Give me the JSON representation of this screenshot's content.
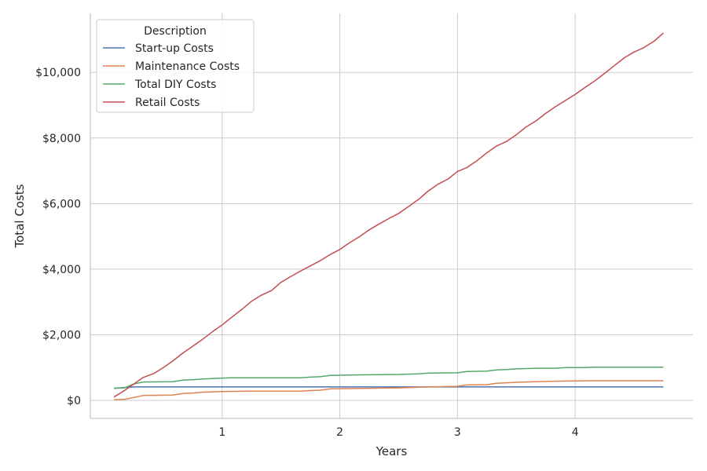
{
  "chart_data": {
    "type": "line",
    "xlabel": "Years",
    "ylabel": "Total Costs",
    "xlim": [
      -0.12,
      5.0
    ],
    "ylim": [
      -550,
      11800
    ],
    "xticks": [
      1,
      2,
      3,
      4
    ],
    "xtick_labels": [
      "1",
      "2",
      "3",
      "4"
    ],
    "yticks": [
      0,
      2000,
      4000,
      6000,
      8000,
      10000
    ],
    "ytick_labels": [
      "$0",
      "$2,000",
      "$4,000",
      "$6,000",
      "$8,000",
      "$10,000"
    ],
    "grid": true,
    "legend": {
      "title": "Description",
      "position": "top-left"
    },
    "series": [
      {
        "name": "Start-up Costs",
        "color": "#4c72b0",
        "points": [
          [
            0.08,
            370
          ],
          [
            0.25,
            410
          ],
          [
            4.75,
            410
          ]
        ]
      },
      {
        "name": "Maintenance Costs",
        "color": "#dd8452",
        "points": [
          [
            0.08,
            20
          ],
          [
            0.17,
            30
          ],
          [
            0.33,
            150
          ],
          [
            0.58,
            160
          ],
          [
            0.67,
            210
          ],
          [
            0.75,
            220
          ],
          [
            0.83,
            250
          ],
          [
            1.0,
            270
          ],
          [
            1.25,
            280
          ],
          [
            1.67,
            280
          ],
          [
            1.75,
            300
          ],
          [
            1.83,
            310
          ],
          [
            1.92,
            350
          ],
          [
            2.08,
            360
          ],
          [
            2.5,
            380
          ],
          [
            2.75,
            410
          ],
          [
            3.0,
            430
          ],
          [
            3.08,
            470
          ],
          [
            3.25,
            480
          ],
          [
            3.33,
            520
          ],
          [
            3.5,
            550
          ],
          [
            3.67,
            570
          ],
          [
            3.92,
            590
          ],
          [
            4.17,
            600
          ],
          [
            4.75,
            600
          ]
        ]
      },
      {
        "name": "Total DIY Costs",
        "color": "#55a868",
        "points": [
          [
            0.08,
            370
          ],
          [
            0.17,
            380
          ],
          [
            0.25,
            500
          ],
          [
            0.33,
            560
          ],
          [
            0.58,
            570
          ],
          [
            0.67,
            620
          ],
          [
            0.75,
            630
          ],
          [
            0.83,
            650
          ],
          [
            1.0,
            680
          ],
          [
            1.08,
            690
          ],
          [
            1.67,
            690
          ],
          [
            1.75,
            710
          ],
          [
            1.83,
            720
          ],
          [
            1.92,
            760
          ],
          [
            2.08,
            770
          ],
          [
            2.25,
            780
          ],
          [
            2.5,
            790
          ],
          [
            2.58,
            800
          ],
          [
            2.67,
            810
          ],
          [
            2.75,
            830
          ],
          [
            3.0,
            840
          ],
          [
            3.08,
            880
          ],
          [
            3.25,
            890
          ],
          [
            3.33,
            930
          ],
          [
            3.42,
            940
          ],
          [
            3.5,
            960
          ],
          [
            3.67,
            980
          ],
          [
            3.83,
            980
          ],
          [
            3.92,
            1000
          ],
          [
            4.08,
            1000
          ],
          [
            4.17,
            1010
          ],
          [
            4.75,
            1010
          ]
        ]
      },
      {
        "name": "Retail Costs",
        "color": "#c44e52",
        "points": [
          [
            0.08,
            100
          ],
          [
            0.17,
            300
          ],
          [
            0.25,
            500
          ],
          [
            0.33,
            700
          ],
          [
            0.42,
            820
          ],
          [
            0.5,
            1000
          ],
          [
            0.58,
            1200
          ],
          [
            0.67,
            1450
          ],
          [
            0.75,
            1650
          ],
          [
            0.83,
            1850
          ],
          [
            0.92,
            2100
          ],
          [
            1.0,
            2300
          ],
          [
            1.08,
            2530
          ],
          [
            1.17,
            2780
          ],
          [
            1.25,
            3020
          ],
          [
            1.33,
            3200
          ],
          [
            1.42,
            3350
          ],
          [
            1.5,
            3600
          ],
          [
            1.58,
            3770
          ],
          [
            1.67,
            3950
          ],
          [
            1.75,
            4100
          ],
          [
            1.83,
            4250
          ],
          [
            1.92,
            4450
          ],
          [
            2.0,
            4600
          ],
          [
            2.08,
            4800
          ],
          [
            2.17,
            5000
          ],
          [
            2.25,
            5200
          ],
          [
            2.33,
            5370
          ],
          [
            2.42,
            5550
          ],
          [
            2.5,
            5700
          ],
          [
            2.58,
            5900
          ],
          [
            2.67,
            6130
          ],
          [
            2.75,
            6380
          ],
          [
            2.83,
            6580
          ],
          [
            2.92,
            6750
          ],
          [
            3.0,
            6980
          ],
          [
            3.08,
            7100
          ],
          [
            3.17,
            7320
          ],
          [
            3.25,
            7550
          ],
          [
            3.33,
            7750
          ],
          [
            3.42,
            7900
          ],
          [
            3.5,
            8100
          ],
          [
            3.58,
            8330
          ],
          [
            3.67,
            8530
          ],
          [
            3.75,
            8750
          ],
          [
            3.83,
            8950
          ],
          [
            3.92,
            9150
          ],
          [
            4.0,
            9330
          ],
          [
            4.08,
            9530
          ],
          [
            4.17,
            9750
          ],
          [
            4.25,
            9970
          ],
          [
            4.33,
            10200
          ],
          [
            4.42,
            10450
          ],
          [
            4.5,
            10620
          ],
          [
            4.58,
            10750
          ],
          [
            4.67,
            10950
          ],
          [
            4.75,
            11200
          ]
        ]
      }
    ]
  }
}
